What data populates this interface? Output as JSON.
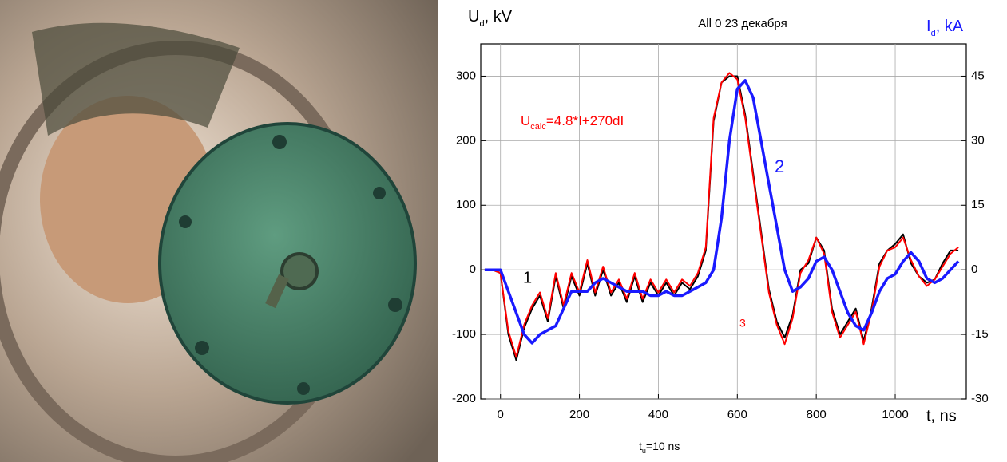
{
  "chart_data": {
    "type": "line",
    "title": "All 0  23 декабря",
    "y_label": {
      "main": "U",
      "sub": "d",
      "rest": ", kV"
    },
    "y2_label": {
      "main": "I",
      "sub": "d",
      "rest": ", kA"
    },
    "x_label": "t, ns",
    "footnote": {
      "main": "t",
      "sub": "u",
      "rest": "=10 ns"
    },
    "formula": {
      "main": "U",
      "sub": "calc",
      "rest": "=4.8*I+270dI"
    },
    "curve_labels": [
      "1",
      "2",
      "3"
    ],
    "xlim": [
      -50,
      1180
    ],
    "xticks": [
      0,
      200,
      400,
      600,
      800,
      1000
    ],
    "ylim": [
      -200,
      350
    ],
    "yticks": [
      -200,
      -100,
      0,
      100,
      200,
      300
    ],
    "y2lim": [
      -30,
      52.5
    ],
    "y2ticks": [
      -30,
      -15,
      0,
      15,
      30,
      45
    ],
    "grid": true,
    "x": [
      -40,
      -20,
      0,
      20,
      40,
      60,
      80,
      100,
      120,
      140,
      160,
      180,
      200,
      220,
      240,
      260,
      280,
      300,
      320,
      340,
      360,
      380,
      400,
      420,
      440,
      460,
      480,
      500,
      520,
      540,
      560,
      580,
      600,
      620,
      640,
      660,
      680,
      700,
      720,
      740,
      760,
      780,
      800,
      820,
      840,
      860,
      880,
      900,
      920,
      940,
      960,
      980,
      1000,
      1020,
      1040,
      1060,
      1080,
      1100,
      1120,
      1140,
      1160
    ],
    "series": [
      {
        "name": "1",
        "color": "#000000",
        "values": [
          0,
          0,
          -5,
          -100,
          -140,
          -90,
          -60,
          -40,
          -80,
          -10,
          -60,
          -10,
          -40,
          10,
          -40,
          0,
          -40,
          -20,
          -50,
          -10,
          -50,
          -20,
          -40,
          -20,
          -40,
          -20,
          -30,
          -10,
          30,
          230,
          290,
          300,
          300,
          240,
          150,
          60,
          -30,
          -80,
          -105,
          -70,
          0,
          10,
          50,
          30,
          -60,
          -100,
          -80,
          -60,
          -110,
          -60,
          10,
          30,
          40,
          55,
          10,
          -10,
          -20,
          -15,
          10,
          30,
          30
        ]
      },
      {
        "name": "3",
        "color": "#ff0000",
        "values": [
          0,
          0,
          -5,
          -95,
          -135,
          -85,
          -55,
          -35,
          -75,
          -5,
          -55,
          -5,
          -35,
          15,
          -35,
          5,
          -35,
          -15,
          -45,
          -5,
          -45,
          -15,
          -35,
          -15,
          -35,
          -15,
          -25,
          -5,
          35,
          235,
          290,
          305,
          295,
          235,
          145,
          55,
          -35,
          -85,
          -115,
          -75,
          -5,
          15,
          50,
          25,
          -65,
          -105,
          -85,
          -65,
          -115,
          -65,
          5,
          30,
          35,
          50,
          15,
          -10,
          -25,
          -15,
          5,
          25,
          35
        ]
      },
      {
        "name": "2",
        "color": "#1a1aff",
        "axis": "y2",
        "values": [
          0,
          0,
          0,
          -5,
          -10,
          -15,
          -17,
          -15,
          -14,
          -13,
          -9,
          -5,
          -5,
          -5,
          -3,
          -2,
          -3,
          -4,
          -5,
          -5,
          -5,
          -6,
          -6,
          -5,
          -6,
          -6,
          -5,
          -4,
          -3,
          0,
          12,
          30,
          42,
          44,
          40,
          30,
          20,
          10,
          0,
          -5,
          -4,
          -2,
          2,
          3,
          0,
          -5,
          -10,
          -13,
          -14,
          -10,
          -5,
          -2,
          -1,
          2,
          4,
          2,
          -2,
          -3,
          -2,
          0,
          2
        ]
      }
    ]
  }
}
